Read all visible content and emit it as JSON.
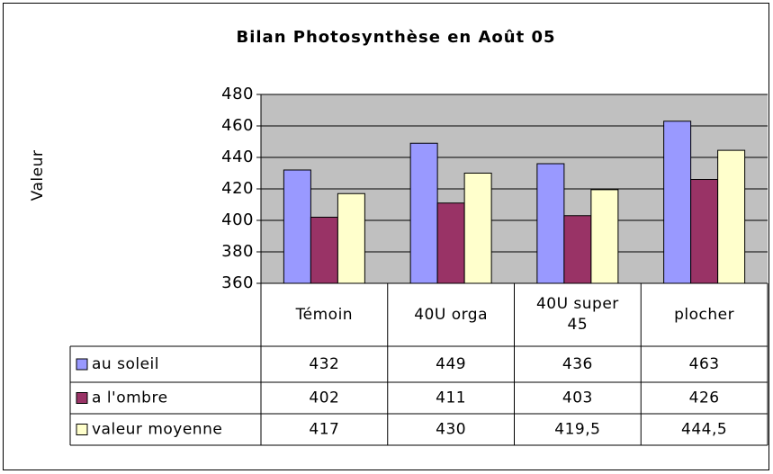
{
  "chart_data": {
    "type": "bar",
    "title": "Bilan Photosynthèse en Août 05",
    "y_label": "Valeur",
    "categories": [
      "Témoin",
      "40U orga",
      "40U super 45",
      "plocher"
    ],
    "series": [
      {
        "name": "au soleil",
        "color": "#9999ff",
        "values": [
          432,
          449,
          436,
          463
        ]
      },
      {
        "name": "a l'ombre",
        "color": "#993366",
        "values": [
          402,
          411,
          403,
          426
        ]
      },
      {
        "name": "valeur moyenne",
        "color": "#ffffcc",
        "values": [
          417,
          430,
          419.5,
          444.5
        ],
        "value_labels": [
          "417",
          "430",
          "419,5",
          "444,5"
        ]
      }
    ],
    "ylim": [
      360,
      480
    ],
    "yticks": [
      360,
      380,
      400,
      420,
      440,
      460,
      480
    ],
    "grid": true,
    "plot_background": "#c0c0c0"
  }
}
